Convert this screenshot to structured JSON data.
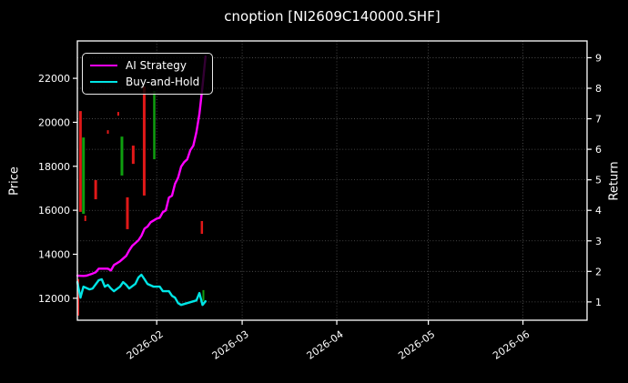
{
  "title": "cnoption [NI2609C140000.SHF]",
  "legend": {
    "items": [
      {
        "label": "AI Strategy",
        "color": "#ff00ff"
      },
      {
        "label": "Buy-and-Hold",
        "color": "#00e5e5"
      }
    ]
  },
  "colors": {
    "background": "#000000",
    "axis": "#ffffff",
    "grid": "rgba(255,255,255,0.35)",
    "candle_up": "#0f9e0f",
    "candle_down": "#e01818",
    "ai_strategy": "#ff00ff",
    "buy_and_hold": "#00e5e5"
  },
  "axes": {
    "price_label": "Price",
    "return_label": "Return",
    "price_ticks": [
      12000,
      14000,
      16000,
      18000,
      20000,
      22000
    ],
    "price_lim": [
      11000,
      23700
    ],
    "return_ticks": [
      1,
      2,
      3,
      4,
      5,
      6,
      7,
      8,
      9
    ],
    "return_lim": [
      0.4,
      9.55
    ],
    "x_tick_labels": [
      "2026-02",
      "2026-03",
      "2026-04",
      "2026-05",
      "2026-06"
    ],
    "x_tick_dates": [
      "2026-02-01",
      "2026-03-01",
      "2026-04-01",
      "2026-05-01",
      "2026-06-01"
    ],
    "x_lim": [
      "2026-01-06",
      "2026-06-22"
    ],
    "grid": "dotted horizontal lines at return ticks, dotted vertical lines at month ticks"
  },
  "chart_data": {
    "type": "line+candlestick",
    "x_start_date": "2026-01-06",
    "note": "line points are [day_offset_from_start, return]; candles are price high/low bars, dir down=red up=green",
    "series": [
      {
        "name": "AI Strategy",
        "axis": "return",
        "color": "#ff00ff",
        "points": [
          [
            0,
            1.86
          ],
          [
            2,
            1.85
          ],
          [
            3,
            1.86
          ],
          [
            5,
            1.93
          ],
          [
            6,
            1.97
          ],
          [
            7,
            2.09
          ],
          [
            9,
            2.09
          ],
          [
            10,
            2.09
          ],
          [
            11,
            2.03
          ],
          [
            12,
            2.21
          ],
          [
            13,
            2.27
          ],
          [
            14,
            2.33
          ],
          [
            16,
            2.51
          ],
          [
            17,
            2.69
          ],
          [
            18,
            2.84
          ],
          [
            20,
            3.02
          ],
          [
            21,
            3.17
          ],
          [
            22,
            3.4
          ],
          [
            23,
            3.47
          ],
          [
            24,
            3.61
          ],
          [
            26,
            3.73
          ],
          [
            27,
            3.76
          ],
          [
            28,
            3.94
          ],
          [
            29,
            4.0
          ],
          [
            30,
            4.42
          ],
          [
            31,
            4.48
          ],
          [
            32,
            4.87
          ],
          [
            33,
            5.07
          ],
          [
            34,
            5.43
          ],
          [
            35,
            5.58
          ],
          [
            36,
            5.67
          ],
          [
            37,
            5.97
          ],
          [
            38,
            6.12
          ],
          [
            39,
            6.56
          ],
          [
            40,
            7.16
          ],
          [
            41,
            8.06
          ],
          [
            42,
            9.04
          ]
        ]
      },
      {
        "name": "Buy-and-Hold",
        "axis": "return",
        "color": "#00e5e5",
        "points": [
          [
            0,
            1.65
          ],
          [
            1,
            1.14
          ],
          [
            2,
            1.5
          ],
          [
            4,
            1.41
          ],
          [
            5,
            1.44
          ],
          [
            7,
            1.71
          ],
          [
            8,
            1.74
          ],
          [
            9,
            1.5
          ],
          [
            10,
            1.56
          ],
          [
            11,
            1.44
          ],
          [
            12,
            1.35
          ],
          [
            14,
            1.5
          ],
          [
            15,
            1.65
          ],
          [
            16,
            1.56
          ],
          [
            17,
            1.44
          ],
          [
            19,
            1.59
          ],
          [
            20,
            1.8
          ],
          [
            21,
            1.89
          ],
          [
            22,
            1.74
          ],
          [
            23,
            1.59
          ],
          [
            25,
            1.5
          ],
          [
            27,
            1.5
          ],
          [
            28,
            1.35
          ],
          [
            30,
            1.35
          ],
          [
            31,
            1.2
          ],
          [
            32,
            1.14
          ],
          [
            33,
            0.96
          ],
          [
            34,
            0.9
          ],
          [
            36,
            0.96
          ],
          [
            37,
            0.99
          ],
          [
            39,
            1.05
          ],
          [
            40,
            1.29
          ],
          [
            41,
            0.9
          ],
          [
            42,
            1.02
          ]
        ]
      }
    ],
    "candles": [
      {
        "day": 0.3,
        "high": 12870,
        "low": 11210,
        "dir": "down",
        "w": 2
      },
      {
        "day": 1.0,
        "high": 20510,
        "low": 15930,
        "dir": "down",
        "w": 3
      },
      {
        "day": 2.0,
        "high": 19310,
        "low": 15840,
        "dir": "up",
        "w": 3
      },
      {
        "day": 2.6,
        "high": 15760,
        "low": 15510,
        "dir": "down",
        "w": 2
      },
      {
        "day": 6.0,
        "high": 17370,
        "low": 16500,
        "dir": "down",
        "w": 3
      },
      {
        "day": 10.0,
        "high": 19640,
        "low": 19480,
        "dir": "down",
        "w": 2
      },
      {
        "day": 13.4,
        "high": 20470,
        "low": 20300,
        "dir": "down",
        "w": 2
      },
      {
        "day": 14.6,
        "high": 19350,
        "low": 17580,
        "dir": "up",
        "w": 3
      },
      {
        "day": 16.4,
        "high": 16590,
        "low": 15140,
        "dir": "down",
        "w": 3
      },
      {
        "day": 18.3,
        "high": 18940,
        "low": 18110,
        "dir": "down",
        "w": 3
      },
      {
        "day": 21.9,
        "high": 21630,
        "low": 16670,
        "dir": "down",
        "w": 3
      },
      {
        "day": 25.2,
        "high": 21420,
        "low": 18320,
        "dir": "up",
        "w": 2.5
      },
      {
        "day": 40.8,
        "high": 15510,
        "low": 14930,
        "dir": "down",
        "w": 2.5
      },
      {
        "day": 41.3,
        "high": 12370,
        "low": 11880,
        "dir": "up",
        "w": 2
      }
    ]
  }
}
